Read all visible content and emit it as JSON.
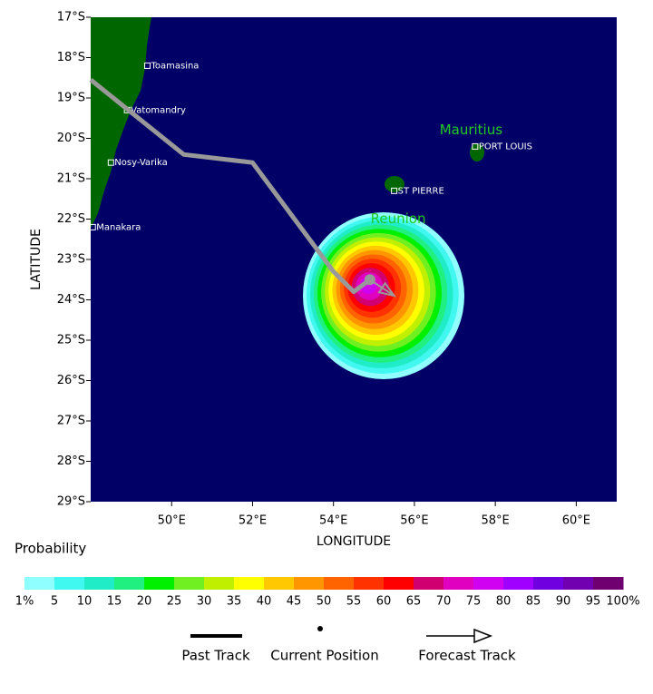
{
  "chart_data": {
    "type": "map",
    "xlabel": "LONGITUDE",
    "ylabel": "LATITUDE",
    "xlim": [
      48,
      61
    ],
    "ylim": [
      17,
      29
    ],
    "xticks": [
      {
        "value": 50,
        "label": "50°E"
      },
      {
        "value": 52,
        "label": "52°E"
      },
      {
        "value": 54,
        "label": "54°E"
      },
      {
        "value": 56,
        "label": "56°E"
      },
      {
        "value": 58,
        "label": "58°E"
      },
      {
        "value": 60,
        "label": "60°E"
      }
    ],
    "yticks": [
      {
        "value": 17,
        "label": "17°S"
      },
      {
        "value": 18,
        "label": "18°S"
      },
      {
        "value": 19,
        "label": "19°S"
      },
      {
        "value": 20,
        "label": "20°S"
      },
      {
        "value": 21,
        "label": "21°S"
      },
      {
        "value": 22,
        "label": "22°S"
      },
      {
        "value": 23,
        "label": "23°S"
      },
      {
        "value": 24,
        "label": "24°S"
      },
      {
        "value": 25,
        "label": "25°S"
      },
      {
        "value": 26,
        "label": "26°S"
      },
      {
        "value": 27,
        "label": "27°S"
      },
      {
        "value": 28,
        "label": "28°S"
      },
      {
        "value": 29,
        "label": "29°S"
      }
    ],
    "places": [
      {
        "name": "Toamasina",
        "lon": 49.4,
        "lat": 18.2
      },
      {
        "name": "Vatomandry",
        "lon": 48.9,
        "lat": 19.3
      },
      {
        "name": "Nosy-Varika",
        "lon": 48.5,
        "lat": 20.6
      },
      {
        "name": "Manakara",
        "lon": 48.05,
        "lat": 22.2
      },
      {
        "name": "PORT LOUIS",
        "lon": 57.5,
        "lat": 20.2
      },
      {
        "name": "ST PIERRE",
        "lon": 55.5,
        "lat": 21.3
      }
    ],
    "islands": [
      {
        "name": "Mauritius",
        "lon": 57.4,
        "lat": 19.8
      },
      {
        "name": "Reunion",
        "lon": 55.6,
        "lat": 22.0
      }
    ],
    "past_track": {
      "lon": [
        48,
        50.3,
        52.0,
        54.0,
        54.5,
        54.9
      ],
      "lat": [
        18.55,
        20.4,
        20.6,
        23.3,
        23.8,
        23.5
      ]
    },
    "forecast_track": {
      "lon": [
        54.9,
        55.5
      ],
      "lat": [
        23.5,
        23.9
      ]
    },
    "current_position": {
      "lon": 54.9,
      "lat": 23.5
    },
    "legend_title": "Probability",
    "legend_colors": [
      "#90ffff",
      "#40f8f0",
      "#20ecc8",
      "#20f080",
      "#00f000",
      "#70f020",
      "#c0f000",
      "#ffff00",
      "#ffc800",
      "#ff9600",
      "#ff6400",
      "#ff3200",
      "#ff0000",
      "#d00070",
      "#e000c0",
      "#d000f0",
      "#a000ff",
      "#7000e0",
      "#7000b0",
      "#700070"
    ],
    "legend_ticks": [
      {
        "value": 1,
        "label": "1%"
      },
      5,
      10,
      15,
      20,
      25,
      30,
      35,
      40,
      45,
      50,
      55,
      60,
      65,
      70,
      75,
      80,
      85,
      90,
      95,
      {
        "value": 100,
        "label": "100%"
      }
    ],
    "legend_items": [
      "Past Track",
      "Current Position",
      "Forecast Track"
    ]
  }
}
